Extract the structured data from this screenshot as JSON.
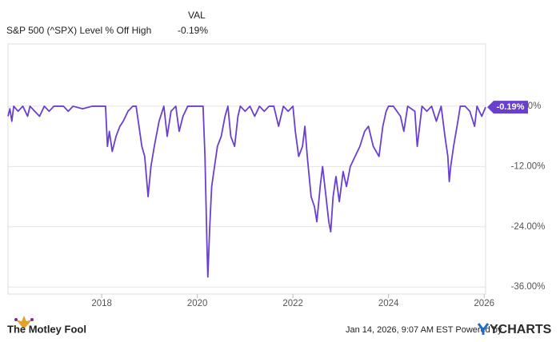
{
  "chart_data": {
    "type": "line",
    "value_header": "VAL",
    "x": [
      2016.04,
      2016.08,
      2016.12,
      2016.16,
      2016.25,
      2016.35,
      2016.45,
      2016.5,
      2016.6,
      2016.7,
      2016.8,
      2016.9,
      2017.0,
      2017.2,
      2017.3,
      2017.4,
      2017.6,
      2017.8,
      2018.0,
      2018.08,
      2018.12,
      2018.16,
      2018.22,
      2018.3,
      2018.38,
      2018.45,
      2018.55,
      2018.65,
      2018.72,
      2018.78,
      2018.84,
      2018.9,
      2018.97,
      2019.03,
      2019.1,
      2019.2,
      2019.3,
      2019.37,
      2019.45,
      2019.55,
      2019.62,
      2019.7,
      2019.8,
      2020.0,
      2020.12,
      2020.16,
      2020.2,
      2020.22,
      2020.26,
      2020.3,
      2020.36,
      2020.42,
      2020.5,
      2020.58,
      2020.64,
      2020.7,
      2020.78,
      2020.85,
      2020.9,
      2021.0,
      2021.1,
      2021.2,
      2021.3,
      2021.4,
      2021.5,
      2021.6,
      2021.7,
      2021.8,
      2021.9,
      2022.0,
      2022.05,
      2022.12,
      2022.2,
      2022.25,
      2022.3,
      2022.38,
      2022.45,
      2022.5,
      2022.57,
      2022.62,
      2022.68,
      2022.75,
      2022.79,
      2022.84,
      2022.9,
      2022.97,
      2023.05,
      2023.12,
      2023.2,
      2023.3,
      2023.4,
      2023.5,
      2023.58,
      2023.68,
      2023.8,
      2023.88,
      2023.95,
      2024.0,
      2024.1,
      2024.25,
      2024.32,
      2024.4,
      2024.55,
      2024.6,
      2024.7,
      2024.8,
      2024.9,
      2025.0,
      2025.1,
      2025.18,
      2025.24,
      2025.27,
      2025.3,
      2025.36,
      2025.45,
      2025.5,
      2025.6,
      2025.7,
      2025.8,
      2025.85,
      2025.9,
      2025.95,
      2026.03
    ],
    "series": [
      {
        "name": "S&P 500 (^SPX) Level % Off High",
        "color": "#6a3fd0",
        "last_label": "-0.19%",
        "values": [
          -2,
          -0.5,
          -3,
          0,
          -1,
          0,
          -2,
          0,
          -1,
          -2,
          0,
          -1,
          0,
          0,
          -1,
          0,
          -0.5,
          0,
          0,
          0,
          -8,
          -5,
          -9,
          -6,
          -4,
          -3,
          -1,
          0,
          0,
          -4,
          -8,
          -10,
          -18,
          -12,
          -8,
          -3,
          0,
          -6,
          -1,
          0,
          -5,
          -2,
          0,
          0,
          0,
          -10,
          -27,
          -34,
          -24,
          -16,
          -12,
          -8,
          -6,
          -2,
          0,
          -6,
          -8,
          -2,
          0,
          -1,
          0,
          -2,
          0,
          -1,
          0,
          0,
          -4,
          0,
          -1,
          0,
          -5,
          -10,
          -8,
          -4,
          -10,
          -18,
          -20,
          -23,
          -16,
          -12,
          -17,
          -23,
          -25,
          -18,
          -14,
          -19,
          -13,
          -16,
          -12,
          -10,
          -8,
          -5,
          -4,
          -8,
          -10,
          -4,
          -1,
          0,
          0,
          -2,
          -5,
          0,
          -1,
          -8,
          0,
          -1,
          0,
          -3,
          0,
          -6,
          -10,
          -15,
          -12,
          -8,
          -3,
          0,
          0,
          -1,
          -4,
          0,
          -1,
          -2,
          -0.19
        ]
      }
    ],
    "xlim": [
      2016.04,
      2026.03
    ],
    "xticks": [
      2018,
      2020,
      2022,
      2024,
      2026
    ],
    "ylim": [
      -37.4,
      12.4
    ],
    "yticks": [
      {
        "value": 0,
        "label": "0.00%"
      },
      {
        "value": -12,
        "label": "-12.00%"
      },
      {
        "value": -24,
        "label": "-24.00%"
      },
      {
        "value": -36,
        "label": "-36.00%"
      }
    ],
    "grid": true,
    "timestamp": "Jan 14, 2026, 9:07 AM EST Powered by",
    "provider": "YCHARTS",
    "publisher": "The Motley Fool"
  }
}
